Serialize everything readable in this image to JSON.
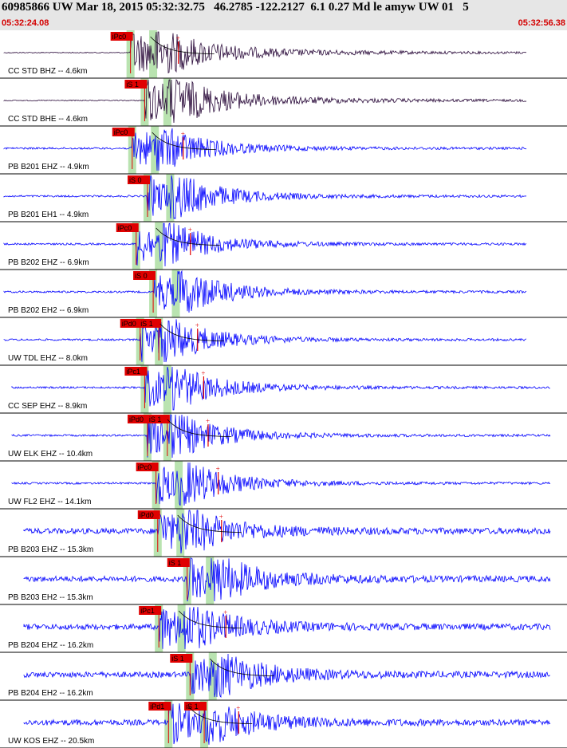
{
  "header": {
    "title": "60985866 UW Mar 18, 2015 05:32:32.75   46.2785 -122.2127  6.1 0.27 Md le amyw UW 01   5",
    "start_time": "05:32:24.08",
    "end_time": "05:32:56.38"
  },
  "colors": {
    "header_bg": "#e6e6e6",
    "time_text": "#d40000",
    "trace_blue": "#0000ff",
    "trace_dark": "#2a0a3a",
    "pick_red": "#e00000",
    "window_green": "#b9e3b0",
    "theory_curve": "#000000"
  },
  "chart_data": {
    "type": "seismogram",
    "time_range": [
      "05:32:24.08",
      "05:32:56.38"
    ],
    "traces": [
      {
        "label": "CC STD BHZ -- 4.6km",
        "picks": [
          {
            "label": "iPc0",
            "t": 0.195
          }
        ]
      },
      {
        "label": "CC STD BHE -- 4.6km",
        "picks": [
          {
            "label": "iS 1",
            "t": 0.22
          }
        ]
      },
      {
        "label": "PB B201 EHZ -- 4.9km",
        "picks": [
          {
            "label": "iPc0",
            "t": 0.198
          }
        ]
      },
      {
        "label": "PB B201 EH1 -- 4.9km",
        "picks": [
          {
            "label": "iS 0",
            "t": 0.225
          }
        ]
      },
      {
        "label": "PB B202 EHZ -- 6.9km",
        "picks": [
          {
            "label": "iPc0",
            "t": 0.205
          }
        ]
      },
      {
        "label": "PB B202 EH2 -- 6.9km",
        "picks": [
          {
            "label": "iS 0",
            "t": 0.235
          }
        ]
      },
      {
        "label": "UW TDL EHZ -- 8.0km",
        "picks": [
          {
            "label": "iPd0",
            "t": 0.212
          },
          {
            "label": "iS 1",
            "t": 0.245
          }
        ]
      },
      {
        "label": "CC SEP EHZ -- 8.9km",
        "picks": [
          {
            "label": "iPc1",
            "t": 0.22
          }
        ]
      },
      {
        "label": "UW ELK EHZ -- 10.4km",
        "picks": [
          {
            "label": "iPd0",
            "t": 0.225
          },
          {
            "label": "iS 1",
            "t": 0.26
          }
        ]
      },
      {
        "label": "UW FL2 EHZ -- 14.1km",
        "picks": [
          {
            "label": "iPc0",
            "t": 0.24
          }
        ]
      },
      {
        "label": "PB B203 EHZ -- 15.3km",
        "picks": [
          {
            "label": "iPd0",
            "t": 0.243
          }
        ]
      },
      {
        "label": "PB B203 EH2 -- 15.3km",
        "picks": [
          {
            "label": "iS 1",
            "t": 0.295
          }
        ]
      },
      {
        "label": "PB B204 EHZ -- 16.2km",
        "picks": [
          {
            "label": "iPc1",
            "t": 0.245
          }
        ]
      },
      {
        "label": "PB B204 EH2 -- 16.2km",
        "picks": [
          {
            "label": "iS 1",
            "t": 0.3
          }
        ]
      },
      {
        "label": "UW KOS EHZ -- 20.5km",
        "picks": [
          {
            "label": "iPd1",
            "t": 0.262
          },
          {
            "label": "iS 1",
            "t": 0.325
          }
        ]
      }
    ]
  }
}
